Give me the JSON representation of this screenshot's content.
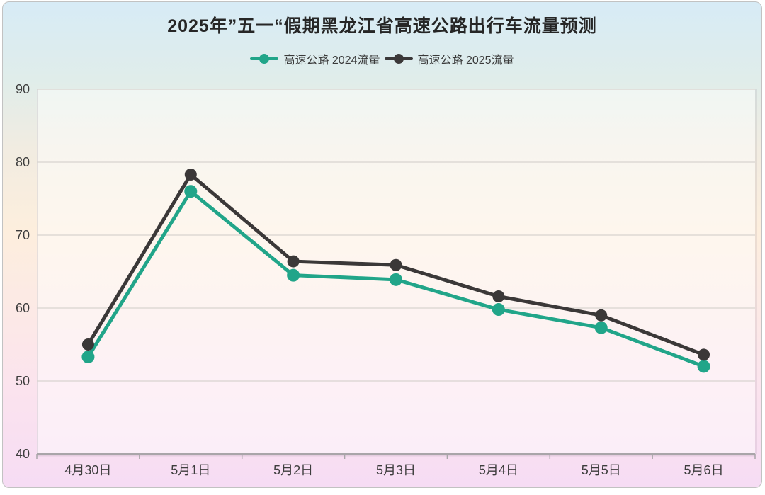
{
  "chart_data": {
    "type": "line",
    "title": "2025年”五一“假期黑龙江省高速公路出行车流量预测",
    "categories": [
      "4月30日",
      "5月1日",
      "5月2日",
      "5月3日",
      "5月4日",
      "5月5日",
      "5月6日"
    ],
    "series": [
      {
        "name": "高速公路 2024流量",
        "color": "#21A589",
        "marker": "circle",
        "values": [
          53.3,
          76.0,
          64.5,
          63.9,
          59.8,
          57.3,
          52.0
        ]
      },
      {
        "name": "高速公路 2025流量",
        "color": "#3B3838",
        "marker": "circle",
        "values": [
          55.0,
          78.3,
          66.4,
          65.9,
          61.6,
          59.0,
          53.6
        ]
      }
    ],
    "xlabel": "",
    "ylabel": "",
    "ylim": [
      40,
      90
    ],
    "yticks": [
      40,
      50,
      60,
      70,
      80,
      90
    ],
    "grid": true,
    "legend_position": "top"
  },
  "colors": {
    "series_2024": "#21A589",
    "series_2025": "#3B3838",
    "title_text": "#262626",
    "axis_text": "#3d3d3d",
    "gridline": "#d8d4cf",
    "axis_line": "#a9a5a9",
    "plot_overlay": "rgba(255,255,255,0.48)",
    "card_border": "#c2c2c2",
    "background_stops": [
      [
        "0%",
        "#d7ebf6"
      ],
      [
        "16%",
        "#e0edea"
      ],
      [
        "30%",
        "#f1ece1"
      ],
      [
        "47%",
        "#fdeedd"
      ],
      [
        "64%",
        "#fce9e6"
      ],
      [
        "80%",
        "#fbe3ee"
      ],
      [
        "100%",
        "#f6dcf4"
      ]
    ]
  }
}
